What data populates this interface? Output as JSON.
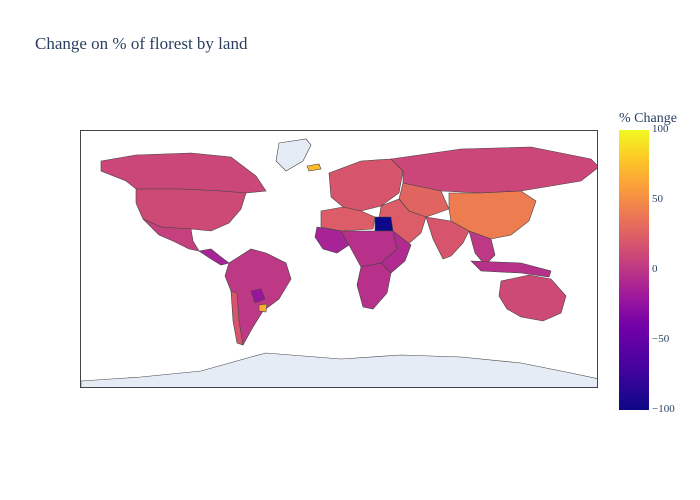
{
  "title": "Change on % of florest by land",
  "colorbar": {
    "title": "% Change",
    "ticks": [
      "100",
      "50",
      "0",
      "−50",
      "−100"
    ],
    "colorscale": [
      "#0d0887",
      "#46039f",
      "#7201a8",
      "#9c179e",
      "#bd3786",
      "#d8576b",
      "#ed7953",
      "#fb9f3a",
      "#fdca26",
      "#f0f921"
    ],
    "range": [
      -100,
      100
    ]
  },
  "map": {
    "projection": "equirectangular",
    "land_color": "#e5ecf6",
    "border_color": "#444444",
    "regions": [
      {
        "name": "Greenland",
        "value": null
      },
      {
        "name": "Antarctica",
        "value": null
      },
      {
        "name": "Canada",
        "value": 0
      },
      {
        "name": "United States",
        "value": 2
      },
      {
        "name": "Mexico",
        "value": -5
      },
      {
        "name": "Central America",
        "value": -25
      },
      {
        "name": "South America",
        "value": -10
      },
      {
        "name": "Paraguay",
        "value": -35
      },
      {
        "name": "Uruguay",
        "value": 60
      },
      {
        "name": "Chile",
        "value": 10
      },
      {
        "name": "Europe",
        "value": 10
      },
      {
        "name": "Iceland",
        "value": 70
      },
      {
        "name": "Russia",
        "value": 0
      },
      {
        "name": "China",
        "value": 35
      },
      {
        "name": "India",
        "value": 10
      },
      {
        "name": "Southeast Asia",
        "value": -10
      },
      {
        "name": "Australia",
        "value": 2
      },
      {
        "name": "North Africa",
        "value": 15
      },
      {
        "name": "Egypt",
        "value": -100
      },
      {
        "name": "West Africa",
        "value": -25
      },
      {
        "name": "Central Africa",
        "value": -15
      },
      {
        "name": "East Africa",
        "value": -20
      },
      {
        "name": "Southern Africa",
        "value": -15
      },
      {
        "name": "Middle East",
        "value": 15
      },
      {
        "name": "Central Asia",
        "value": 20
      },
      {
        "name": "Indonesia",
        "value": -15
      }
    ]
  }
}
